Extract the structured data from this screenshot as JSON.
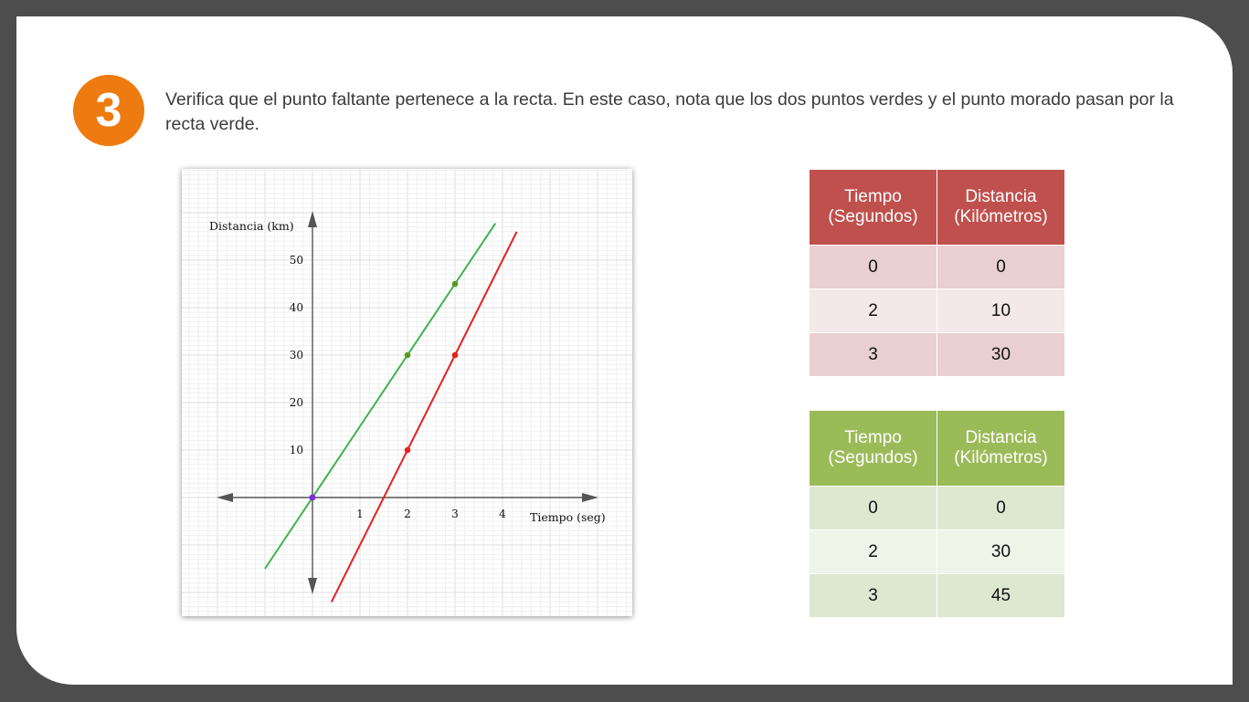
{
  "step": {
    "number": "3",
    "badge_color": "#ee7b0f"
  },
  "instruction": "Verifica que el punto faltante pertenece a la recta. En este caso, nota que los dos puntos verdes y el punto morado pasan por la recta verde.",
  "chart_data": {
    "type": "line",
    "xlabel": "Tiempo (seg)",
    "ylabel": "Distancia (km)",
    "xlim": [
      -2,
      6
    ],
    "ylim": [
      -20,
      60
    ],
    "x_ticks": [
      "1",
      "2",
      "3",
      "4"
    ],
    "y_ticks": [
      "10",
      "20",
      "30",
      "40",
      "50"
    ],
    "grid": true,
    "series": [
      {
        "color": "#3fb24a",
        "slope": 15,
        "intercept": 0,
        "x_range": [
          -1,
          3.85
        ],
        "points": [
          {
            "x": 2,
            "y": 30,
            "color": "#5a9a1e"
          },
          {
            "x": 3,
            "y": 45,
            "color": "#5a9a1e"
          }
        ]
      },
      {
        "color": "#e8201e",
        "slope": 20,
        "intercept": -30,
        "x_range": [
          0.4,
          4.3
        ],
        "points": [
          {
            "x": 2,
            "y": 10,
            "color": "#e8201e"
          },
          {
            "x": 3,
            "y": 30,
            "color": "#e8201e"
          }
        ]
      }
    ],
    "highlight_point": {
      "x": 0,
      "y": 0,
      "color": "#7a2fd6"
    }
  },
  "red_table": {
    "header_color": "#c0504d",
    "headers": [
      [
        "Tiempo",
        "(Segundos)"
      ],
      [
        "Distancia",
        "(Kilómetros)"
      ]
    ],
    "rows": [
      [
        "0",
        "0"
      ],
      [
        "2",
        "10"
      ],
      [
        "3",
        "30"
      ]
    ]
  },
  "green_table": {
    "header_color": "#9bbb59",
    "headers": [
      [
        "Tiempo",
        "(Segundos)"
      ],
      [
        "Distancia",
        "(Kilómetros)"
      ]
    ],
    "rows": [
      [
        "0",
        "0"
      ],
      [
        "2",
        "30"
      ],
      [
        "3",
        "45"
      ]
    ]
  }
}
